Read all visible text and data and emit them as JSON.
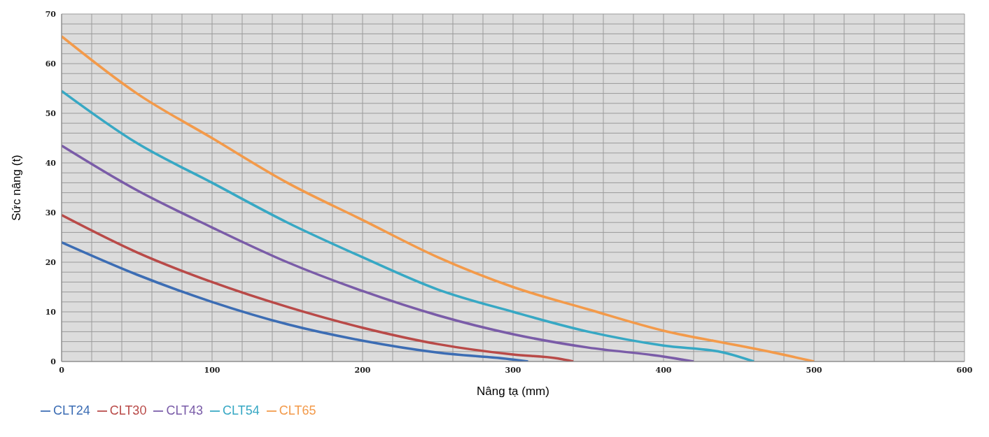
{
  "chart_data": {
    "type": "line",
    "xlabel": "Nâng tạ (mm)",
    "ylabel": "Sức nâng (t)",
    "xlim": [
      0,
      600
    ],
    "xticks": [
      0,
      {
        "value": 20,
        "label": null
      },
      {
        "value": 40,
        "label": null
      },
      {
        "value": 60,
        "label": null
      },
      {
        "value": 80,
        "label": null
      },
      100,
      {
        "value": 120,
        "label": null
      },
      {
        "value": 140,
        "label": null
      },
      {
        "value": 160,
        "label": null
      },
      {
        "value": 180,
        "label": null
      },
      200,
      {
        "value": 220,
        "label": null
      },
      {
        "value": 240,
        "label": null
      },
      {
        "value": 260,
        "label": null
      },
      {
        "value": 280,
        "label": null
      },
      300,
      {
        "value": 320,
        "label": null
      },
      {
        "value": 340,
        "label": null
      },
      {
        "value": 360,
        "label": null
      },
      {
        "value": 380,
        "label": null
      },
      400,
      {
        "value": 420,
        "label": null
      },
      {
        "value": 440,
        "label": null
      },
      {
        "value": 460,
        "label": null
      },
      {
        "value": 480,
        "label": null
      },
      500,
      {
        "value": 520,
        "label": null
      },
      {
        "value": 540,
        "label": null
      },
      {
        "value": 560,
        "label": null
      },
      {
        "value": 580,
        "label": null
      },
      600
    ],
    "ylim": [
      0,
      70
    ],
    "yticks": [
      0,
      {
        "value": 2,
        "label": null
      },
      {
        "value": 4,
        "label": null
      },
      {
        "value": 6,
        "label": null
      },
      {
        "value": 8,
        "label": null
      },
      10,
      {
        "value": 12,
        "label": null
      },
      {
        "value": 14,
        "label": null
      },
      {
        "value": 16,
        "label": null
      },
      {
        "value": 18,
        "label": null
      },
      20,
      {
        "value": 22,
        "label": null
      },
      {
        "value": 24,
        "label": null
      },
      {
        "value": 26,
        "label": null
      },
      {
        "value": 28,
        "label": null
      },
      30,
      {
        "value": 32,
        "label": null
      },
      {
        "value": 34,
        "label": null
      },
      {
        "value": 36,
        "label": null
      },
      {
        "value": 38,
        "label": null
      },
      40,
      {
        "value": 42,
        "label": null
      },
      {
        "value": 44,
        "label": null
      },
      {
        "value": 46,
        "label": null
      },
      {
        "value": 48,
        "label": null
      },
      50,
      {
        "value": 52,
        "label": null
      },
      {
        "value": 54,
        "label": null
      },
      {
        "value": 56,
        "label": null
      },
      {
        "value": 58,
        "label": null
      },
      60,
      {
        "value": 62,
        "label": null
      },
      {
        "value": 64,
        "label": null
      },
      {
        "value": 66,
        "label": null
      },
      {
        "value": 68,
        "label": null
      },
      70
    ],
    "grid": true,
    "legend": "bottom left",
    "marker": "none",
    "line_style": "solid",
    "series": [
      {
        "name": "CLT24",
        "color": "#3c6db4",
        "x": [
          0,
          50,
          100,
          150,
          200,
          250,
          300,
          310
        ],
        "values": [
          24,
          17.5,
          12,
          7.5,
          4.2,
          1.8,
          0.4,
          0
        ]
      },
      {
        "name": "CLT30",
        "color": "#b94a48",
        "x": [
          0,
          50,
          100,
          150,
          200,
          250,
          300,
          330,
          340
        ],
        "values": [
          29.5,
          22,
          16,
          11,
          6.8,
          3.5,
          1.4,
          0.6,
          0
        ]
      },
      {
        "name": "CLT43",
        "color": "#7a5ca8",
        "x": [
          0,
          50,
          100,
          150,
          200,
          250,
          300,
          350,
          400,
          420
        ],
        "values": [
          43.5,
          34.5,
          27,
          20,
          14.2,
          9.3,
          5.5,
          2.8,
          1,
          0
        ]
      },
      {
        "name": "CLT54",
        "color": "#37a8c4",
        "x": [
          0,
          50,
          100,
          150,
          200,
          250,
          300,
          350,
          400,
          440,
          460
        ],
        "values": [
          54.5,
          44,
          36,
          28,
          21,
          14.5,
          10,
          6,
          3.2,
          1.8,
          0
        ]
      },
      {
        "name": "CLT65",
        "color": "#f39a4a",
        "x": [
          0,
          50,
          100,
          150,
          200,
          250,
          300,
          350,
          400,
          450,
          470,
          500
        ],
        "values": [
          65.5,
          54,
          45,
          36,
          28.5,
          21,
          15,
          10.5,
          6.2,
          3.2,
          2,
          0
        ]
      }
    ]
  }
}
